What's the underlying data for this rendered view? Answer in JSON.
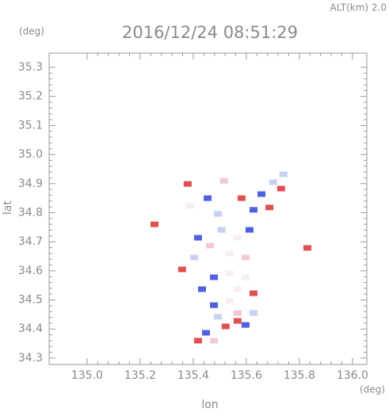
{
  "chart_data": {
    "type": "scatter",
    "title": "2016/12/24 08:51:29",
    "subtitle": "ALT(km) 2.0",
    "y_unit": "(deg)",
    "x_unit": "(deg)",
    "xlabel": "lon",
    "ylabel": "lat",
    "xlim": [
      134.857,
      136.054
    ],
    "ylim": [
      34.278,
      35.349
    ],
    "xticks": [
      {
        "value": 135.0,
        "label": "135.0"
      },
      135.2,
      135.4,
      135.6,
      135.8,
      {
        "value": 136.0,
        "label": "136.0"
      }
    ],
    "yticks": [
      34.3,
      34.4,
      34.5,
      34.6,
      34.7,
      34.8,
      34.9,
      {
        "value": 35.0,
        "label": "35.0"
      },
      35.1,
      35.2,
      35.3
    ],
    "x": [
      135.379,
      135.516,
      135.454,
      135.582,
      135.657,
      135.731,
      135.74,
      135.627,
      135.687,
      135.254,
      135.493,
      135.418,
      135.358,
      135.463,
      135.537,
      135.597,
      135.478,
      135.537,
      135.597,
      135.627,
      135.478,
      135.537,
      135.567,
      135.522,
      135.448,
      135.418,
      135.567,
      135.83,
      135.507,
      135.567,
      135.612,
      135.403,
      135.627,
      135.493,
      135.433,
      135.567,
      135.597,
      135.478,
      135.701,
      135.388
    ],
    "values": [
      34.899,
      34.91,
      34.85,
      34.85,
      34.864,
      34.883,
      34.932,
      34.81,
      34.818,
      34.76,
      34.796,
      34.714,
      34.605,
      34.687,
      34.66,
      34.646,
      34.578,
      34.591,
      34.578,
      34.523,
      34.482,
      34.496,
      34.428,
      34.409,
      34.387,
      34.36,
      34.455,
      34.679,
      34.741,
      34.714,
      34.741,
      34.646,
      34.455,
      34.442,
      34.537,
      34.537,
      34.414,
      34.36,
      34.905,
      34.823
    ],
    "colors": [
      "#e05050",
      "#f4c8d0",
      "#5060e0",
      "#e05050",
      "#5060e0",
      "#e05050",
      "#c8d0f4",
      "#5060e0",
      "#e05050",
      "#e05050",
      "#c8d0f4",
      "#5060e0",
      "#e05050",
      "#f4c8d0",
      "#f8eef2",
      "#f4c8d0",
      "#5060e0",
      "#f8eef2",
      "#f8eef2",
      "#e05050",
      "#5060e0",
      "#f8eef2",
      "#e05050",
      "#e05050",
      "#5060e0",
      "#e05050",
      "#f4c8d0",
      "#e05050",
      "#c8d0f4",
      "#f8eef2",
      "#5060e0",
      "#c8d0f4",
      "#c8d0f4",
      "#c8d0f4",
      "#5060e0",
      "#f8eef2",
      "#5060e0",
      "#f4c8d0",
      "#c8d0f4",
      "#f8eef2"
    ]
  }
}
